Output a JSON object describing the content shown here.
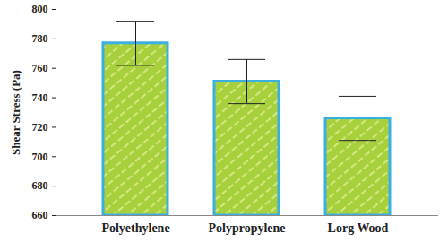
{
  "chart_data": {
    "type": "bar",
    "y_label": "Shear Stress (Pa)",
    "categories": [
      "Polyethylene",
      "Polypropylene",
      "Lorg Wood"
    ],
    "values": [
      777,
      751,
      726
    ],
    "errors": [
      15,
      15,
      15
    ],
    "color": "#a6d13c",
    "ylim": [
      660,
      800
    ],
    "yticks": [
      660,
      680,
      700,
      720,
      740,
      760,
      780,
      800
    ],
    "grid": false
  }
}
